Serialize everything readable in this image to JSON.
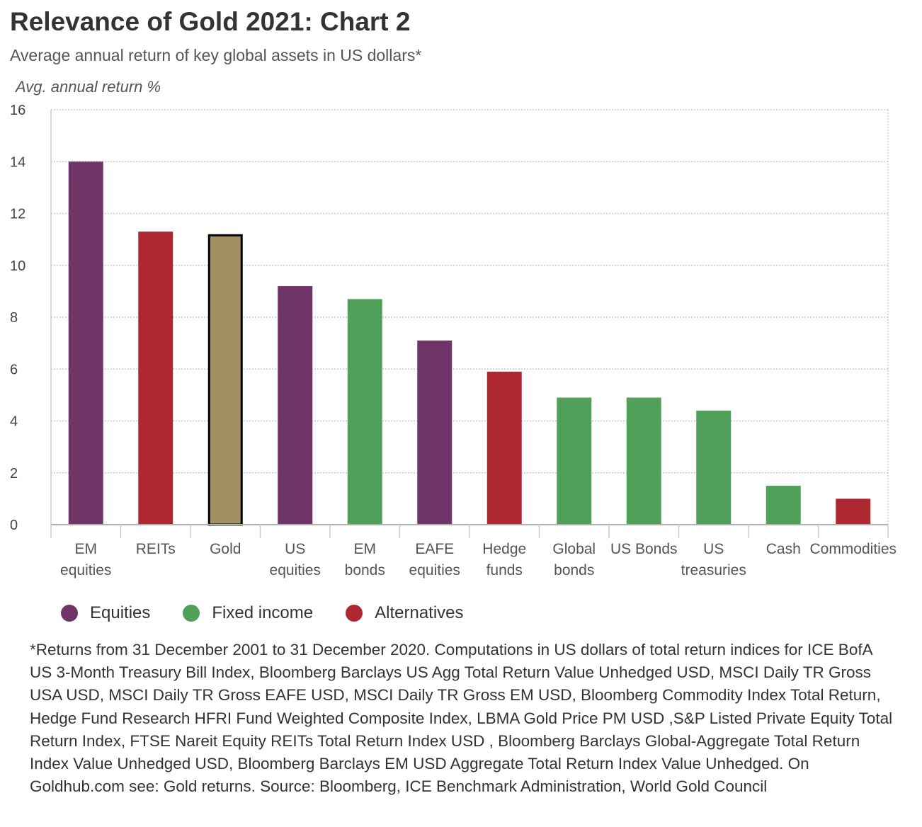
{
  "title": "Relevance of Gold 2021: Chart 2",
  "subtitle": "Average annual return of key global assets in US dollars*",
  "legend": [
    {
      "label": "Equities",
      "color": "#6f3468"
    },
    {
      "label": "Fixed income",
      "color": "#51a05a"
    },
    {
      "label": "Alternatives",
      "color": "#ad2831"
    }
  ],
  "footnote": "*Returns from 31 December 2001 to 31 December 2020. Computations in US dollars of total return indices for ICE BofA US 3-Month Treasury Bill Index, Bloomberg Barclays US Agg Total Return Value Unhedged USD, MSCI Daily TR Gross USA USD, MSCI Daily TR Gross EAFE USD, MSCI Daily TR Gross EM USD, Bloomberg Commodity Index Total Return, Hedge Fund Research HFRI Fund Weighted Composite Index, LBMA Gold Price PM USD ,S&P Listed Private Equity Total Return Index, FTSE Nareit Equity REITs Total Return Index USD , Bloomberg Barclays Global-Aggregate Total Return Index Value Unhedged USD, Bloomberg Barclays EM USD Aggregate Total Return Index Value Unhedged. On Goldhub.com see: Gold returns. Source: Bloomberg, ICE Benchmark Administration, World Gold Council",
  "chart_data": {
    "type": "bar",
    "title": "Relevance of Gold 2021: Chart 2",
    "subtitle": "Average annual return of key global assets in US dollars*",
    "xlabel": "",
    "ylabel": "Avg. annual return %",
    "ylim": [
      0,
      16
    ],
    "yticks": [
      "0",
      "2",
      "4",
      "6",
      "8",
      "10",
      "12",
      "14",
      "16"
    ],
    "grid": true,
    "legend_position": "bottom",
    "categories": [
      [
        "EM",
        "equities"
      ],
      [
        "REITs"
      ],
      [
        "Gold"
      ],
      [
        "US",
        "equities"
      ],
      [
        "EM",
        "bonds"
      ],
      [
        "EAFE",
        "equities"
      ],
      [
        "Hedge",
        "funds"
      ],
      [
        "Global",
        "bonds"
      ],
      [
        "US Bonds"
      ],
      [
        "US",
        "treasuries"
      ],
      [
        "Cash"
      ],
      [
        "Commodities"
      ]
    ],
    "values": [
      14.0,
      11.3,
      11.2,
      9.2,
      8.7,
      7.1,
      5.9,
      4.9,
      4.9,
      4.4,
      1.5,
      1.0
    ],
    "groups": [
      "Equities",
      "Alternatives",
      "Gold",
      "Equities",
      "Fixed income",
      "Equities",
      "Alternatives",
      "Fixed income",
      "Fixed income",
      "Fixed income",
      "Fixed income",
      "Alternatives"
    ],
    "colors": {
      "Equities": "#6f3468",
      "Fixed income": "#51a05a",
      "Alternatives": "#ad2831",
      "Gold": "#a28f64"
    },
    "highlight_outline": "#000000"
  }
}
